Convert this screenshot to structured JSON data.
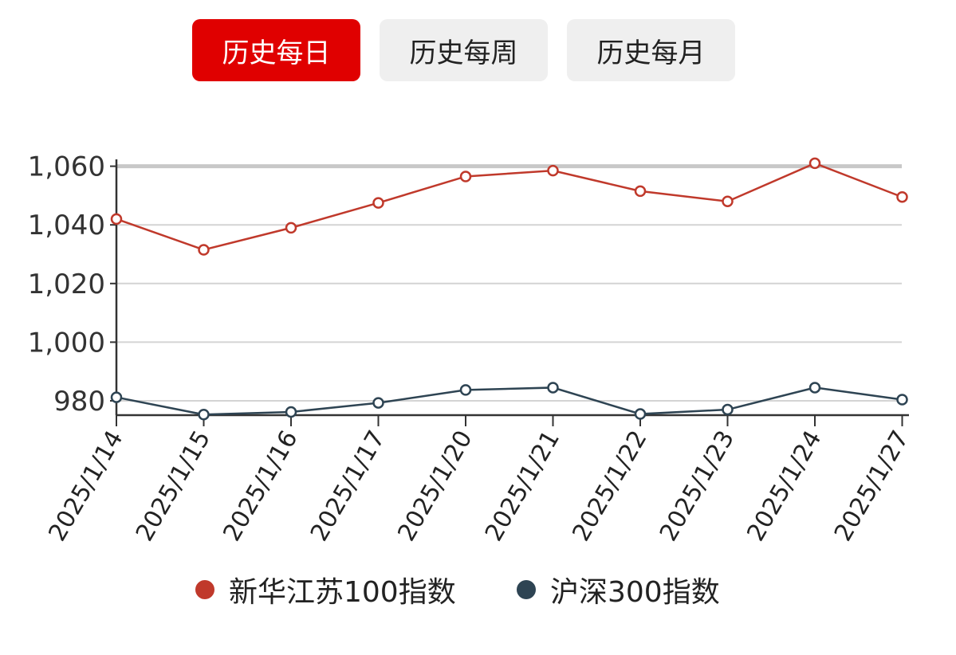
{
  "tabs": [
    {
      "label": "历史每日",
      "active": true
    },
    {
      "label": "历史每周",
      "active": false
    },
    {
      "label": "历史每月",
      "active": false
    }
  ],
  "colors": {
    "active_tab": "#e00000",
    "inactive_tab": "#efefef"
  },
  "chart_data": {
    "type": "line",
    "x": [
      "2025/1/14",
      "2025/1/15",
      "2025/1/16",
      "2025/1/17",
      "2025/1/20",
      "2025/1/21",
      "2025/1/22",
      "2025/1/23",
      "2025/1/24",
      "2025/1/27"
    ],
    "series": [
      {
        "name": "新华江苏100指数",
        "color": "#c0392b",
        "values": [
          1042,
          1031.5,
          1039,
          1047.5,
          1056.5,
          1058.5,
          1051.5,
          1048,
          1061,
          1049.5
        ]
      },
      {
        "name": "沪深300指数",
        "color": "#2e4453",
        "values": [
          981.2,
          975.3,
          976.2,
          979.3,
          983.7,
          984.5,
          975.5,
          977,
          984.5,
          980.4
        ]
      }
    ],
    "yticks": [
      980,
      1000,
      1020,
      1040,
      1060
    ],
    "ytick_labels": [
      "980",
      "1,000",
      "1,020",
      "1,040",
      "1,060"
    ],
    "ylim": [
      975,
      1060
    ],
    "grid": true,
    "legend_position": "bottom"
  }
}
